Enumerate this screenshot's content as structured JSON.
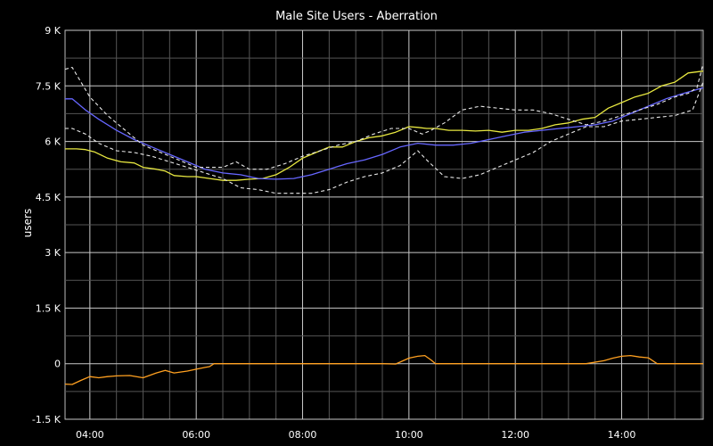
{
  "chart_data": {
    "type": "line",
    "title": "Male Site Users - Aberration",
    "xlabel": "",
    "ylabel": "users",
    "ylim": [
      -1500,
      9000
    ],
    "xlim": [
      "03:32",
      "15:32"
    ],
    "y_ticks": [
      {
        "value": -1500,
        "label": "-1.5 K"
      },
      {
        "value": 0,
        "label": "0"
      },
      {
        "value": 1500,
        "label": "1.5 K"
      },
      {
        "value": 3000,
        "label": "3 K"
      },
      {
        "value": 4500,
        "label": "4.5 K"
      },
      {
        "value": 6000,
        "label": "6 K"
      },
      {
        "value": 7500,
        "label": "7.5 K"
      },
      {
        "value": 9000,
        "label": "9 K"
      }
    ],
    "x_ticks": [
      "04:00",
      "06:00",
      "08:00",
      "10:00",
      "12:00",
      "14:00"
    ],
    "grid": true,
    "background": "#000000",
    "series": [
      {
        "color": "#e8e840",
        "style": "solid",
        "x": [
          "03:32",
          "03:45",
          "03:55",
          "04:05",
          "04:20",
          "04:35",
          "04:50",
          "05:00",
          "05:15",
          "05:25",
          "05:35",
          "05:50",
          "06:00",
          "06:15",
          "06:30",
          "06:45",
          "07:00",
          "07:15",
          "07:30",
          "07:45",
          "08:00",
          "08:15",
          "08:30",
          "08:45",
          "09:00",
          "09:15",
          "09:30",
          "09:45",
          "10:00",
          "10:10",
          "10:20",
          "10:30",
          "10:45",
          "11:00",
          "11:15",
          "11:30",
          "11:45",
          "12:00",
          "12:15",
          "12:30",
          "12:45",
          "13:00",
          "13:15",
          "13:30",
          "13:45",
          "14:00",
          "14:15",
          "14:30",
          "14:45",
          "15:00",
          "15:15",
          "15:32"
        ],
        "y": [
          5800,
          5800,
          5780,
          5720,
          5550,
          5450,
          5420,
          5300,
          5250,
          5200,
          5080,
          5050,
          5050,
          5000,
          4950,
          4950,
          4980,
          5000,
          5100,
          5300,
          5550,
          5700,
          5850,
          5850,
          6000,
          6100,
          6150,
          6250,
          6400,
          6380,
          6350,
          6350,
          6300,
          6300,
          6280,
          6300,
          6250,
          6300,
          6300,
          6350,
          6450,
          6500,
          6600,
          6650,
          6900,
          7050,
          7200,
          7300,
          7500,
          7600,
          7850,
          7900
        ]
      },
      {
        "color": "#6666ff",
        "style": "solid",
        "x": [
          "03:32",
          "03:40",
          "03:55",
          "04:10",
          "04:30",
          "04:50",
          "05:10",
          "05:30",
          "05:50",
          "06:10",
          "06:30",
          "06:50",
          "07:10",
          "07:30",
          "07:50",
          "08:10",
          "08:30",
          "08:50",
          "09:10",
          "09:30",
          "09:50",
          "10:10",
          "10:30",
          "10:50",
          "11:10",
          "11:30",
          "11:50",
          "12:10",
          "12:30",
          "12:50",
          "13:10",
          "13:30",
          "13:50",
          "14:10",
          "14:30",
          "14:50",
          "15:10",
          "15:32"
        ],
        "y": [
          7150,
          7150,
          6850,
          6600,
          6300,
          6050,
          5850,
          5650,
          5450,
          5250,
          5150,
          5100,
          5000,
          4980,
          5000,
          5100,
          5250,
          5400,
          5500,
          5650,
          5850,
          5950,
          5900,
          5900,
          5950,
          6050,
          6150,
          6250,
          6300,
          6350,
          6400,
          6450,
          6550,
          6750,
          6950,
          7150,
          7300,
          7450
        ]
      },
      {
        "color": "#e8e8e8",
        "style": "dashed",
        "x": [
          "03:32",
          "03:40",
          "03:50",
          "04:00",
          "04:20",
          "04:40",
          "05:00",
          "05:20",
          "05:40",
          "06:00",
          "06:15",
          "06:30",
          "06:45",
          "07:00",
          "07:20",
          "07:40",
          "08:00",
          "08:20",
          "08:40",
          "09:00",
          "09:20",
          "09:40",
          "10:00",
          "10:15",
          "10:25",
          "10:40",
          "11:00",
          "11:20",
          "11:40",
          "12:00",
          "12:20",
          "12:40",
          "13:00",
          "13:20",
          "13:40",
          "14:00",
          "14:20",
          "14:40",
          "15:00",
          "15:15",
          "15:25",
          "15:32"
        ],
        "y": [
          7950,
          8000,
          7600,
          7200,
          6700,
          6300,
          5900,
          5700,
          5500,
          5300,
          5300,
          5300,
          5450,
          5250,
          5250,
          5400,
          5600,
          5750,
          5900,
          6000,
          6200,
          6350,
          6350,
          6200,
          6300,
          6500,
          6850,
          6950,
          6900,
          6850,
          6850,
          6750,
          6600,
          6450,
          6550,
          6700,
          6850,
          7000,
          7200,
          7300,
          7450,
          8100
        ]
      },
      {
        "color": "#e8e8e8",
        "style": "dashed",
        "x": [
          "03:32",
          "03:40",
          "03:55",
          "04:10",
          "04:30",
          "04:50",
          "05:10",
          "05:30",
          "05:50",
          "06:10",
          "06:30",
          "06:50",
          "07:10",
          "07:30",
          "07:50",
          "08:10",
          "08:30",
          "08:50",
          "09:10",
          "09:30",
          "09:50",
          "10:10",
          "10:20",
          "10:40",
          "11:00",
          "11:20",
          "11:40",
          "12:00",
          "12:20",
          "12:40",
          "13:00",
          "13:20",
          "13:40",
          "14:00",
          "14:20",
          "14:40",
          "15:00",
          "15:20",
          "15:32"
        ],
        "y": [
          6350,
          6350,
          6200,
          5950,
          5750,
          5700,
          5600,
          5450,
          5300,
          5150,
          5000,
          4750,
          4700,
          4600,
          4600,
          4600,
          4700,
          4900,
          5050,
          5150,
          5350,
          5750,
          5500,
          5050,
          5000,
          5100,
          5300,
          5500,
          5700,
          6000,
          6200,
          6400,
          6400,
          6550,
          6600,
          6650,
          6700,
          6850,
          7600
        ]
      },
      {
        "color": "#ffa020",
        "style": "solid",
        "x": [
          "03:32",
          "03:40",
          "03:50",
          "04:00",
          "04:10",
          "04:20",
          "04:30",
          "04:45",
          "05:00",
          "05:15",
          "05:25",
          "05:35",
          "05:50",
          "06:00",
          "06:10",
          "06:15",
          "06:20",
          "07:00",
          "08:00",
          "09:00",
          "09:30",
          "09:45",
          "10:00",
          "10:10",
          "10:18",
          "10:25",
          "10:30",
          "11:00",
          "12:00",
          "13:00",
          "13:20",
          "13:40",
          "13:50",
          "14:00",
          "14:10",
          "14:20",
          "14:30",
          "14:40",
          "15:00",
          "15:32"
        ],
        "y": [
          -550,
          -560,
          -450,
          -350,
          -380,
          -350,
          -330,
          -320,
          -380,
          -250,
          -180,
          -250,
          -200,
          -150,
          -100,
          -80,
          0,
          0,
          0,
          0,
          0,
          -10,
          150,
          200,
          220,
          100,
          0,
          0,
          0,
          0,
          0,
          80,
          150,
          200,
          220,
          180,
          160,
          0,
          0,
          0
        ]
      }
    ]
  }
}
